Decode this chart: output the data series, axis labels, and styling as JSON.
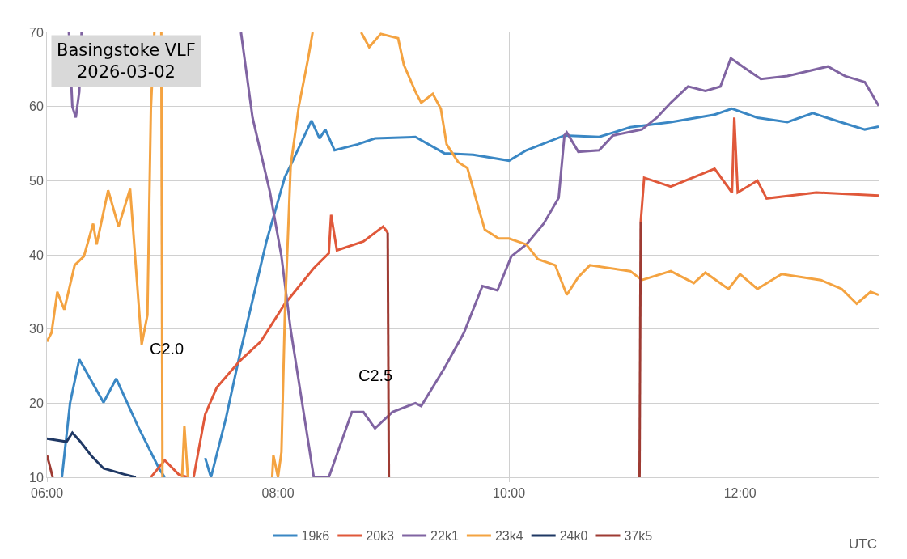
{
  "chart_data": {
    "type": "line",
    "title": "Basingstoke VLF",
    "subtitle": "2026-03-02",
    "xlabel": "UTC",
    "xlim": [
      6,
      13.2
    ],
    "ylim": [
      10,
      70
    ],
    "xticks": [
      {
        "value": 6,
        "label": "06:00"
      },
      {
        "value": 8,
        "label": "08:00"
      },
      {
        "value": 10,
        "label": "10:00"
      },
      {
        "value": 12,
        "label": "12:00"
      }
    ],
    "yticks": [
      10,
      20,
      30,
      40,
      50,
      60,
      70
    ],
    "grid": true,
    "legend": "bottom",
    "marker": "none",
    "line_style": "solid",
    "annotations": [
      "C2.0",
      "C2.5"
    ],
    "series": [
      {
        "name": "19k6",
        "color": "#3a87c4",
        "x": [
          6.13,
          6.2,
          6.28,
          6.49,
          6.6,
          6.79,
          6.97,
          7.02,
          7.3,
          7.37,
          7.42,
          7.55,
          7.67,
          7.9,
          8.06,
          8.11,
          8.29,
          8.36,
          8.41,
          8.49,
          8.69,
          8.84,
          9.19,
          9.44,
          9.69,
          10.0,
          10.15,
          10.48,
          10.78,
          11.05,
          11.4,
          11.78,
          11.93,
          12.15,
          12.41,
          12.63,
          12.91,
          13.08,
          13.2
        ],
        "values": [
          10,
          20,
          25.9,
          20.1,
          23.3,
          16.8,
          11.2,
          10,
          null,
          12.6,
          10,
          18,
          26.6,
          41.8,
          50.5,
          52.1,
          58.1,
          55.7,
          56.9,
          54.1,
          54.9,
          55.7,
          55.9,
          53.7,
          53.5,
          52.7,
          54.1,
          56.1,
          55.9,
          57.2,
          57.9,
          58.9,
          59.7,
          58.5,
          57.9,
          59.1,
          57.7,
          56.9,
          57.3
        ]
      },
      {
        "name": "20k3",
        "color": "#e0583a",
        "x": [
          6.9,
          7.02,
          7.14,
          7.22,
          7.25,
          7.27,
          7.37,
          7.47,
          7.67,
          7.85,
          8.06,
          8.31,
          8.44,
          8.46,
          8.51,
          8.74,
          8.91,
          8.95,
          9.0,
          11.14,
          11.17,
          11.4,
          11.78,
          11.93,
          11.95,
          11.98,
          12.15,
          12.23,
          12.66,
          13.2
        ],
        "values": [
          10,
          12.3,
          10.4,
          10,
          null,
          10,
          18.5,
          22.1,
          25.7,
          28.3,
          33.4,
          38.2,
          40.2,
          45.4,
          40.6,
          41.8,
          43.8,
          43,
          null,
          44.4,
          50.4,
          49.2,
          51.6,
          48.4,
          58.5,
          48.4,
          50,
          47.6,
          48.4,
          48
        ]
      },
      {
        "name": "22k1",
        "color": "#8064a2",
        "x": [
          6.19,
          6.22,
          6.25,
          6.28,
          6.3,
          7.0,
          7.68,
          7.78,
          7.93,
          8.03,
          8.11,
          8.31,
          8.44,
          8.64,
          8.74,
          8.84,
          8.99,
          9.19,
          9.24,
          9.44,
          9.61,
          9.77,
          9.9,
          10.02,
          10.15,
          10.3,
          10.43,
          10.48,
          10.5,
          10.6,
          10.78,
          10.9,
          11.15,
          11.28,
          11.4,
          11.55,
          11.7,
          11.83,
          11.92,
          12.03,
          12.18,
          12.41,
          12.76,
          12.91,
          13.08,
          13.2
        ],
        "values": [
          70,
          60,
          58.5,
          62,
          70,
          null,
          70,
          58.5,
          48.5,
          39.8,
          29.9,
          10,
          10,
          18.8,
          18.8,
          16.6,
          18.8,
          20,
          19.6,
          24.7,
          29.5,
          35.8,
          35.2,
          39.8,
          41.4,
          44.2,
          47.7,
          56.1,
          56.5,
          53.9,
          54.1,
          56.1,
          56.9,
          58.5,
          60.5,
          62.7,
          62.1,
          62.7,
          66.5,
          65.3,
          63.7,
          64.1,
          65.4,
          64.1,
          63.3,
          60.1
        ]
      },
      {
        "name": "23k4",
        "color": "#f4a341",
        "x": [
          6.0,
          6.04,
          6.09,
          6.15,
          6.24,
          6.32,
          6.4,
          6.43,
          6.53,
          6.62,
          6.72,
          6.82,
          6.87,
          6.9,
          6.93,
          6.96,
          6.99,
          7.0,
          7.1,
          7.17,
          7.19,
          7.22,
          7.5,
          7.95,
          7.96,
          8.0,
          8.03,
          8.06,
          8.11,
          8.18,
          8.26,
          8.3,
          8.5,
          8.72,
          8.79,
          8.89,
          9.04,
          9.09,
          9.19,
          9.24,
          9.34,
          9.41,
          9.46,
          9.56,
          9.64,
          9.74,
          9.79,
          9.91,
          10.0,
          10.15,
          10.25,
          10.4,
          10.5,
          10.6,
          10.7,
          11.05,
          11.15,
          11.4,
          11.6,
          11.7,
          11.9,
          12.0,
          12.15,
          12.36,
          12.7,
          12.88,
          13.01,
          13.13,
          13.2
        ],
        "values": [
          28.3,
          29.5,
          35,
          32.6,
          38.6,
          39.8,
          44.2,
          41.4,
          48.7,
          43.8,
          48.9,
          27.9,
          31.9,
          59.7,
          70,
          null,
          70,
          10,
          null,
          10,
          16.9,
          10,
          null,
          10,
          13,
          10,
          13.4,
          32,
          52,
          60,
          66.4,
          70,
          null,
          70,
          68,
          69.8,
          69.2,
          65.6,
          62,
          60.5,
          61.7,
          59.7,
          54.9,
          52.5,
          51.7,
          46.1,
          43.4,
          42.2,
          42.2,
          41.4,
          39.4,
          38.6,
          34.6,
          37,
          38.6,
          37.8,
          36.6,
          37.8,
          36.2,
          37.6,
          35.4,
          37.4,
          35.4,
          37.4,
          36.6,
          35.4,
          33.4,
          35,
          34.6
        ]
      },
      {
        "name": "24k0",
        "color": "#1f3864",
        "x": [
          6.0,
          6.17,
          6.22,
          6.29,
          6.39,
          6.49,
          6.67,
          6.77
        ],
        "values": [
          15.2,
          14.8,
          16,
          14.8,
          12.8,
          11.2,
          10.4,
          10
        ]
      },
      {
        "name": "37k5",
        "color": "#9e3b33",
        "x": [
          6.0,
          6.05,
          6.5,
          8.95,
          8.96,
          10,
          11.13,
          11.14
        ],
        "values": [
          13,
          10,
          null,
          43,
          10,
          null,
          10,
          44.4
        ]
      }
    ]
  }
}
